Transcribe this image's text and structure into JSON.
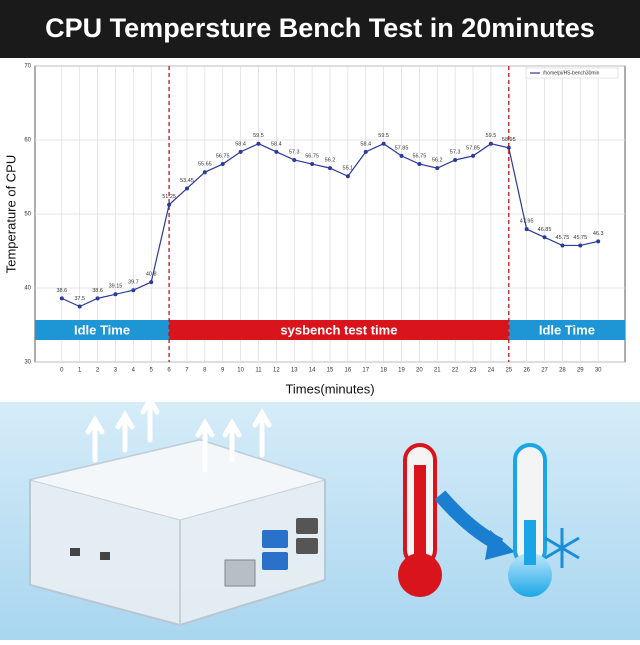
{
  "chart_data": {
    "type": "line",
    "title": "CPU Tempersture Bench Test in 20minutes",
    "y_label": "Temperature of CPU",
    "x_label": "Times(minutes)",
    "x": [
      0,
      1,
      2,
      3,
      4,
      5,
      6,
      7,
      8,
      9,
      10,
      11,
      12,
      13,
      14,
      15,
      16,
      17,
      18,
      19,
      20,
      21,
      22,
      23,
      24,
      25,
      26,
      27,
      28,
      29,
      30
    ],
    "series": [
      {
        "name": "/home/pi/HS-bench30min",
        "color": "#2b3a9c",
        "values": [
          38.6,
          37.5,
          38.6,
          39.15,
          39.7,
          40.8,
          51.25,
          53.45,
          55.65,
          56.75,
          58.4,
          59.5,
          58.4,
          57.3,
          56.75,
          56.2,
          55.1,
          58.4,
          59.5,
          57.85,
          56.75,
          56.2,
          57.3,
          57.85,
          59.5,
          58.95,
          47.95,
          46.85,
          45.75,
          45.75,
          46.3
        ]
      }
    ],
    "xlim": [
      -1.5,
      31.5
    ],
    "ylim": [
      30,
      70
    ],
    "xticks": [
      0,
      1,
      2,
      3,
      4,
      5,
      6,
      7,
      8,
      9,
      10,
      11,
      12,
      13,
      14,
      15,
      16,
      17,
      18,
      19,
      20,
      21,
      22,
      23,
      24,
      25,
      26,
      27,
      28,
      29,
      30
    ],
    "yticks": [
      30,
      40,
      50,
      60,
      70
    ],
    "grid": true,
    "legend": "upper right",
    "vlines": [
      6,
      25
    ],
    "regions": [
      {
        "label": "Idle Time",
        "x": [
          -1.5,
          6
        ],
        "color": "#1e96d6"
      },
      {
        "label": "sysbench test time",
        "x": [
          6,
          25
        ],
        "color": "#d9141c"
      },
      {
        "label": "Idle Time",
        "x": [
          25,
          31.5
        ],
        "color": "#1e96d6"
      }
    ]
  }
}
